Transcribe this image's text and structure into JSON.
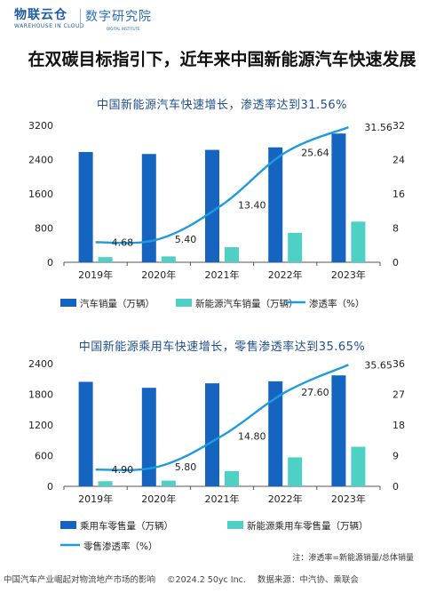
{
  "header": {
    "brand_name": "物联云仓",
    "brand_tagline": "WAREHOUSE IN CLOUD",
    "research_name": "数字研究院",
    "research_tagline": "DIGITAL INSTITUTE"
  },
  "main_title": "在双碳目标指引下，近年来中国新能源汽车快速发展",
  "note": "注：渗透率=新能源销量/总体销量",
  "footer": {
    "report": "中国汽车产业崛起对物流地产市场的影响",
    "copyright": "©2024.2 50yc Inc.",
    "source": "数据来源：中汽协、乘联会"
  },
  "colors": {
    "bar_primary": "#1565c0",
    "bar_secondary": "#4ed0c4",
    "line": "#1e9be0"
  },
  "chart_data": [
    {
      "type": "bar",
      "title": "中国新能源汽车快速增长，渗透率达到31.56%",
      "categories": [
        "2019年",
        "2020年",
        "2021年",
        "2022年",
        "2023年"
      ],
      "ylim_left": [
        0,
        3200
      ],
      "yticks_left": [
        "0",
        "800",
        "1600",
        "2400",
        "3200"
      ],
      "ylim_right": [
        0,
        32
      ],
      "yticks_right": [
        "0",
        "8",
        "16",
        "24",
        "32"
      ],
      "series": [
        {
          "name": "汽车销量（万辆）",
          "kind": "bar",
          "axis": "left",
          "values": [
            2577,
            2531,
            2627,
            2686,
            3009
          ]
        },
        {
          "name": "新能源汽车销量（万辆）",
          "kind": "bar",
          "axis": "left",
          "values": [
            121,
            137,
            352,
            689,
            950
          ]
        },
        {
          "name": "渗透率（%）",
          "kind": "line",
          "axis": "right",
          "values": [
            4.68,
            5.4,
            13.4,
            25.64,
            31.56
          ],
          "labels": [
            "4.68",
            "5.40",
            "13.40",
            "25.64",
            "31.56"
          ]
        }
      ],
      "grid": false,
      "legend_position": "bottom"
    },
    {
      "type": "bar",
      "title": "中国新能源乘用车快速增长，零售渗透率达到35.65%",
      "categories": [
        "2019年",
        "2020年",
        "2021年",
        "2022年",
        "2023年"
      ],
      "ylim_left": [
        0,
        2400
      ],
      "yticks_left": [
        "0",
        "600",
        "1200",
        "1800",
        "2400"
      ],
      "ylim_right": [
        0,
        36
      ],
      "yticks_right": [
        "0",
        "9",
        "18",
        "27",
        "36"
      ],
      "series": [
        {
          "name": "乘用车零售量（万辆）",
          "kind": "bar",
          "axis": "left",
          "values": [
            2044,
            1927,
            2015,
            2054,
            2170
          ]
        },
        {
          "name": "新能源乘用车零售量（万辆）",
          "kind": "bar",
          "axis": "left",
          "values": [
            100,
            111,
            299,
            567,
            774
          ]
        },
        {
          "name": "零售渗透率（%）",
          "kind": "line",
          "axis": "right",
          "values": [
            4.9,
            5.8,
            14.8,
            27.6,
            35.65
          ],
          "labels": [
            "4.90",
            "5.80",
            "14.80",
            "27.60",
            "35.65"
          ]
        }
      ],
      "grid": false,
      "legend_position": "bottom"
    }
  ]
}
